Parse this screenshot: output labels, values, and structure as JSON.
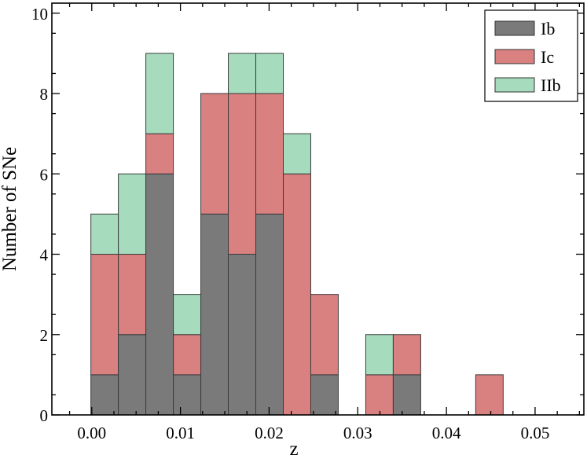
{
  "chart_data": {
    "type": "bar",
    "stacked": true,
    "xlabel": "z",
    "ylabel": "Number of SNe",
    "xlim": [
      -0.0045,
      0.0555
    ],
    "ylim": [
      0,
      10.25
    ],
    "xticks": [
      "0.00",
      "0.01",
      "0.02",
      "0.03",
      "0.04",
      "0.05"
    ],
    "xtick_values": [
      0.0,
      0.01,
      0.02,
      0.03,
      0.04,
      0.05
    ],
    "yticks": [
      "0",
      "2",
      "4",
      "6",
      "8",
      "10"
    ],
    "ytick_values": [
      0,
      2,
      4,
      6,
      8,
      10
    ],
    "grid": false,
    "legend_position": "top-right",
    "bin_edges": [
      -0.0001,
      0.003,
      0.0061,
      0.0092,
      0.0123,
      0.0154,
      0.0185,
      0.0216,
      0.0247,
      0.0278,
      0.0309,
      0.034,
      0.0371,
      0.0402,
      0.0433,
      0.0464
    ],
    "series": [
      {
        "name": "Ib",
        "color": "#7a7a7a",
        "values": [
          1,
          2,
          6,
          1,
          5,
          4,
          5,
          0,
          1,
          0,
          0,
          1,
          0,
          0,
          0
        ]
      },
      {
        "name": "Ic",
        "color": "#d98080",
        "values": [
          3,
          2,
          1,
          1,
          3,
          4,
          3,
          6,
          2,
          0,
          1,
          1,
          0,
          0,
          1
        ]
      },
      {
        "name": "IIb",
        "color": "#a6dcbd",
        "values": [
          1,
          2,
          2,
          1,
          0,
          1,
          1,
          1,
          0,
          0,
          1,
          0,
          0,
          0,
          0
        ]
      }
    ]
  }
}
